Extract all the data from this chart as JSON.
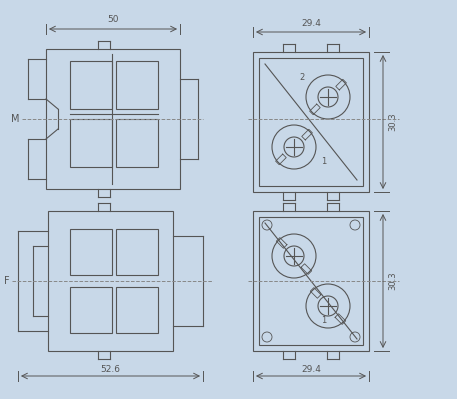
{
  "bg_color": "#c8d8e8",
  "line_color": "#555555",
  "dim_color": "#555555",
  "title": "",
  "fig_w": 4.57,
  "fig_h": 3.99,
  "dpi": 100
}
